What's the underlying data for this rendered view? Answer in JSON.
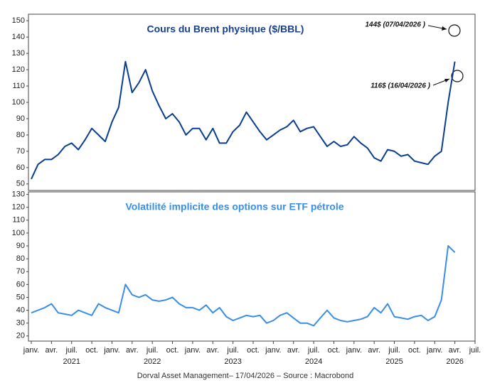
{
  "chart_data": [
    {
      "type": "line",
      "title": "Cours du Brent physique ($/BBL)",
      "x": [
        "2021-01",
        "2021-02",
        "2021-03",
        "2021-04",
        "2021-05",
        "2021-06",
        "2021-07",
        "2021-08",
        "2021-09",
        "2021-10",
        "2021-11",
        "2021-12",
        "2022-01",
        "2022-02",
        "2022-03",
        "2022-04",
        "2022-05",
        "2022-06",
        "2022-07",
        "2022-08",
        "2022-09",
        "2022-10",
        "2022-11",
        "2022-12",
        "2023-01",
        "2023-02",
        "2023-03",
        "2023-04",
        "2023-05",
        "2023-06",
        "2023-07",
        "2023-08",
        "2023-09",
        "2023-10",
        "2023-11",
        "2023-12",
        "2024-01",
        "2024-02",
        "2024-03",
        "2024-04",
        "2024-05",
        "2024-06",
        "2024-07",
        "2024-08",
        "2024-09",
        "2024-10",
        "2024-11",
        "2024-12",
        "2025-01",
        "2025-02",
        "2025-03",
        "2025-04",
        "2025-05",
        "2025-06",
        "2025-07",
        "2025-08",
        "2025-09",
        "2025-10",
        "2025-11",
        "2025-12",
        "2026-01",
        "2026-02",
        "2026-03",
        "2026-04"
      ],
      "values": [
        53,
        62,
        65,
        65,
        68,
        73,
        75,
        71,
        77,
        84,
        80,
        76,
        88,
        97,
        125,
        106,
        112,
        120,
        107,
        98,
        90,
        93,
        88,
        80,
        84,
        84,
        77,
        84,
        75,
        75,
        82,
        86,
        94,
        88,
        82,
        77,
        80,
        83,
        85,
        89,
        82,
        84,
        85,
        79,
        73,
        76,
        73,
        74,
        79,
        75,
        72,
        66,
        64,
        71,
        70,
        67,
        68,
        64,
        63,
        62,
        67,
        70,
        100,
        125
      ],
      "color": "#0b3d91",
      "annotations": [
        "144$ (07/04/2026 )",
        "116$ (16/04/2026 )"
      ],
      "xlim": [
        "2021-01",
        "2026-07"
      ],
      "ylim": [
        46,
        154
      ],
      "yticks": [
        50,
        60,
        70,
        80,
        90,
        100,
        110,
        120,
        130,
        140,
        150
      ]
    },
    {
      "type": "line",
      "title": "Volatilité implicite des options sur ETF pétrole",
      "x": [
        "2021-01",
        "2021-02",
        "2021-03",
        "2021-04",
        "2021-05",
        "2021-06",
        "2021-07",
        "2021-08",
        "2021-09",
        "2021-10",
        "2021-11",
        "2021-12",
        "2022-01",
        "2022-02",
        "2022-03",
        "2022-04",
        "2022-05",
        "2022-06",
        "2022-07",
        "2022-08",
        "2022-09",
        "2022-10",
        "2022-11",
        "2022-12",
        "2023-01",
        "2023-02",
        "2023-03",
        "2023-04",
        "2023-05",
        "2023-06",
        "2023-07",
        "2023-08",
        "2023-09",
        "2023-10",
        "2023-11",
        "2023-12",
        "2024-01",
        "2024-02",
        "2024-03",
        "2024-04",
        "2024-05",
        "2024-06",
        "2024-07",
        "2024-08",
        "2024-09",
        "2024-10",
        "2024-11",
        "2024-12",
        "2025-01",
        "2025-02",
        "2025-03",
        "2025-04",
        "2025-05",
        "2025-06",
        "2025-07",
        "2025-08",
        "2025-09",
        "2025-10",
        "2025-11",
        "2025-12",
        "2026-01",
        "2026-02",
        "2026-03",
        "2026-04"
      ],
      "values": [
        38,
        40,
        42,
        45,
        38,
        37,
        36,
        40,
        38,
        36,
        45,
        42,
        40,
        38,
        60,
        52,
        50,
        52,
        48,
        47,
        48,
        50,
        45,
        42,
        42,
        40,
        44,
        38,
        42,
        35,
        32,
        34,
        36,
        35,
        36,
        30,
        32,
        36,
        38,
        34,
        30,
        30,
        28,
        34,
        40,
        34,
        32,
        31,
        32,
        33,
        35,
        42,
        38,
        45,
        35,
        34,
        33,
        35,
        36,
        32,
        35,
        48,
        90,
        85
      ],
      "color": "#3a8ee6",
      "xlim": [
        "2021-01",
        "2026-07"
      ],
      "ylim": [
        16,
        132
      ],
      "yticks": [
        20,
        30,
        40,
        50,
        60,
        70,
        80,
        90,
        100,
        110,
        120,
        130
      ],
      "xticks": [
        {
          "value": "2021-01",
          "label": "janv."
        },
        {
          "value": "2021-04",
          "label": "avr."
        },
        {
          "value": "2021-07",
          "label": "juil."
        },
        {
          "value": "2021-10",
          "label": "oct."
        },
        {
          "value": "2022-01",
          "label": "janv."
        },
        {
          "value": "2022-04",
          "label": "avr."
        },
        {
          "value": "2022-07",
          "label": "juil."
        },
        {
          "value": "2022-10",
          "label": "oct."
        },
        {
          "value": "2023-01",
          "label": "janv."
        },
        {
          "value": "2023-04",
          "label": "avr."
        },
        {
          "value": "2023-07",
          "label": "juil."
        },
        {
          "value": "2023-10",
          "label": "oct."
        },
        {
          "value": "2024-01",
          "label": "janv."
        },
        {
          "value": "2024-04",
          "label": "avr."
        },
        {
          "value": "2024-07",
          "label": "juil."
        },
        {
          "value": "2024-10",
          "label": "oct."
        },
        {
          "value": "2025-01",
          "label": "janv."
        },
        {
          "value": "2025-04",
          "label": "avr."
        },
        {
          "value": "2025-07",
          "label": "juil."
        },
        {
          "value": "2025-10",
          "label": "oct."
        },
        {
          "value": "2026-01",
          "label": "janv."
        },
        {
          "value": "2026-04",
          "label": "avr."
        },
        {
          "value": "2026-07",
          "label": "juil."
        }
      ],
      "year_labels": [
        {
          "value": "2021-07",
          "label": "2021"
        },
        {
          "value": "2022-07",
          "label": "2022"
        },
        {
          "value": "2023-07",
          "label": "2023"
        },
        {
          "value": "2024-07",
          "label": "2024"
        },
        {
          "value": "2025-07",
          "label": "2025"
        },
        {
          "value": "2026-04",
          "label": "2026"
        }
      ]
    }
  ],
  "footer": "Dorval Asset Management– 17/04/2026  –  Source : Macrobond"
}
